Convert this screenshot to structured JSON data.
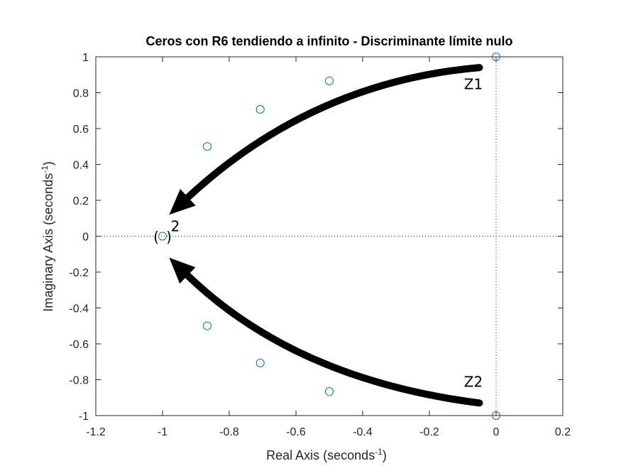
{
  "chart_data": {
    "type": "scatter",
    "title": "Ceros con R6 tendiendo a infinito - Discriminante límite nulo",
    "xlabel": "Real Axis (seconds",
    "xlabel_exp": "-1",
    "xlabel_close": ")",
    "ylabel": "Imaginary Axis (seconds",
    "ylabel_exp": "-1",
    "ylabel_close": ")",
    "xlim": [
      -1.2,
      0.2
    ],
    "ylim": [
      -1,
      1
    ],
    "xticks": [
      -1.2,
      -1,
      -0.8,
      -0.6,
      -0.4,
      -0.2,
      0,
      0.2
    ],
    "xtick_labels": [
      "-1.2",
      "-1",
      "-0.8",
      "-0.6",
      "-0.4",
      "-0.2",
      "0",
      "0.2"
    ],
    "yticks": [
      1,
      0.8,
      0.6,
      0.4,
      0.2,
      0,
      -0.2,
      -0.4,
      -0.6,
      -0.8,
      -1
    ],
    "ytick_labels": [
      "1",
      "0.8",
      "0.6",
      "0.4",
      "0.2",
      "0",
      "-0.2",
      "-0.4",
      "-0.6",
      "-0.8",
      "-1"
    ],
    "grid": false,
    "series": [
      {
        "marker": "circle",
        "color": "#0072BD",
        "points": [
          {
            "x": 0,
            "y": 1
          },
          {
            "x": -0.5,
            "y": 0.866
          },
          {
            "x": -0.707,
            "y": 0.707
          },
          {
            "x": -0.866,
            "y": 0.5
          },
          {
            "x": -1,
            "y": 0
          },
          {
            "x": -0.866,
            "y": -0.5
          },
          {
            "x": -0.707,
            "y": -0.707
          },
          {
            "x": -0.5,
            "y": -0.866
          },
          {
            "x": 0,
            "y": -1
          }
        ]
      }
    ],
    "multiplicity": {
      "x": -1,
      "y": 0,
      "open": "(",
      "close": ")",
      "exp": "2"
    },
    "reference_lines": {
      "x": 0,
      "y": 0,
      "style": "dotted"
    },
    "annotations": [
      {
        "text": "Z1",
        "x": -0.04,
        "y": 0.82
      },
      {
        "text": "Z2",
        "x": -0.04,
        "y": -0.84
      }
    ],
    "arrows": [
      {
        "label": "Z1",
        "from": {
          "x": -0.05,
          "y": 0.94
        },
        "via": {
          "x": -0.55,
          "y": 0.86
        },
        "to": {
          "x": -0.98,
          "y": 0.12
        }
      },
      {
        "label": "Z2",
        "from": {
          "x": -0.05,
          "y": -0.93
        },
        "via": {
          "x": -0.6,
          "y": -0.8
        },
        "to": {
          "x": -0.98,
          "y": -0.12
        }
      }
    ],
    "colors": {
      "marker": "#0072BD",
      "axes": "#262626",
      "arrow": "#000000",
      "ref_line": "#262626"
    }
  }
}
